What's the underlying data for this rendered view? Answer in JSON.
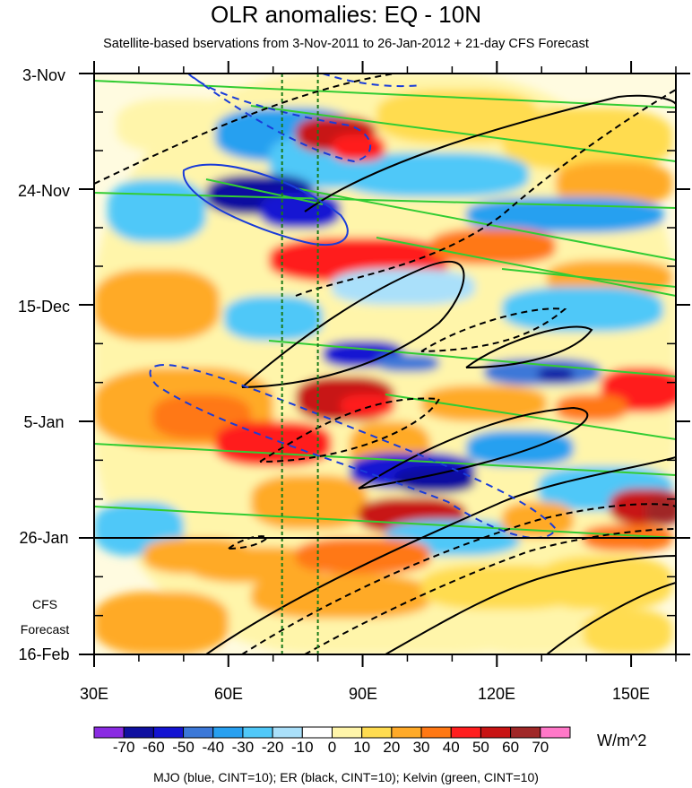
{
  "chart_data": {
    "type": "heatmap",
    "title": "OLR anomalies: EQ - 10N",
    "subtitle": "Satellite-based bservations from 3-Nov-2011 to 26-Jan-2012 + 21-day CFS Forecast",
    "x_axis": {
      "ticks": [
        "30E",
        "60E",
        "90E",
        "120E",
        "150E"
      ],
      "range": [
        30,
        160
      ]
    },
    "y_axis": {
      "ticks": [
        "3-Nov",
        "24-Nov",
        "15-Dec",
        "5-Jan",
        "26-Jan",
        "16-Feb"
      ],
      "range": [
        "3-Nov-2011",
        "16-Feb-2012"
      ],
      "reversed": true
    },
    "forecast_label": [
      "CFS",
      "Forecast"
    ],
    "colorbar": {
      "labels": [
        "-70",
        "-60",
        "-50",
        "-40",
        "-30",
        "-20",
        "-10",
        "0",
        "10",
        "20",
        "30",
        "40",
        "50",
        "60",
        "70"
      ],
      "colors": [
        "#8A2BE2",
        "#1010A0",
        "#1414D2",
        "#3C78D8",
        "#28A0F0",
        "#50C8F8",
        "#AAE0FA",
        "#FFFFFF",
        "#FFF5AA",
        "#FFDC50",
        "#FFAA28",
        "#FF7814",
        "#FF1E1E",
        "#C81414",
        "#A02828",
        "#FF78C8"
      ],
      "units": "W/m^2"
    },
    "contours_legend": "MJO (blue, CINT=10); ER (black, CINT=10); Kelvin (green, CINT=10)",
    "reference_longitudes": [
      72,
      80
    ]
  }
}
